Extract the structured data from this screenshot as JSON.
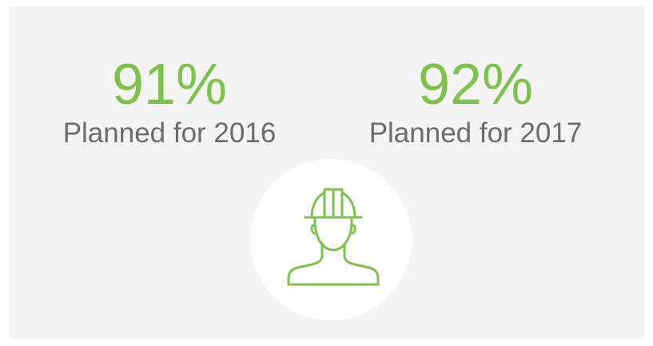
{
  "stats": [
    {
      "value": "91%",
      "label": "Planned for 2016"
    },
    {
      "value": "92%",
      "label": "Planned for 2017"
    }
  ]
}
